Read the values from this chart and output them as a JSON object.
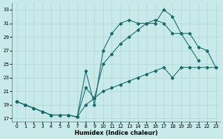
{
  "xlabel": "Humidex (Indice chaleur)",
  "bg_color": "#c8eaea",
  "grid_color": "#b0d4d4",
  "line_color": "#1a6b6b",
  "xlim": [
    -0.5,
    23.5
  ],
  "ylim": [
    16.5,
    34.0
  ],
  "xticks": [
    0,
    1,
    2,
    3,
    4,
    5,
    6,
    7,
    8,
    9,
    10,
    11,
    12,
    13,
    14,
    15,
    16,
    17,
    18,
    19,
    20,
    21,
    22,
    23
  ],
  "yticks": [
    17,
    19,
    21,
    23,
    25,
    27,
    29,
    31,
    33
  ],
  "line1_x": [
    0,
    1,
    2,
    3,
    4,
    5,
    6,
    7,
    8,
    9,
    10,
    11,
    12,
    13,
    14,
    15,
    16,
    17,
    18,
    19,
    20,
    21,
    22,
    23
  ],
  "line1_y": [
    19.5,
    19.0,
    18.5,
    18.0,
    17.5,
    17.5,
    17.5,
    17.2,
    19.0,
    20.0,
    21.0,
    21.5,
    22.0,
    22.5,
    23.0,
    23.5,
    24.0,
    24.5,
    23.0,
    24.5,
    24.5,
    24.5,
    24.5,
    24.5
  ],
  "line2_x": [
    0,
    1,
    2,
    3,
    4,
    5,
    6,
    7,
    8,
    9,
    10,
    11,
    12,
    13,
    14,
    15,
    16,
    17,
    18,
    19,
    20,
    21
  ],
  "line2_y": [
    19.5,
    19.0,
    18.5,
    18.0,
    17.5,
    17.5,
    17.5,
    17.2,
    24.0,
    19.0,
    27.0,
    29.5,
    31.0,
    31.5,
    31.0,
    31.0,
    31.0,
    33.0,
    32.0,
    29.5,
    27.5,
    25.5
  ],
  "line3_x": [
    0,
    1,
    2,
    3,
    4,
    5,
    6,
    7,
    8,
    9,
    10,
    11,
    12,
    13,
    14,
    15,
    16,
    17,
    18,
    19,
    20,
    21,
    22,
    23
  ],
  "line3_y": [
    19.5,
    19.0,
    18.5,
    18.0,
    17.5,
    17.5,
    17.5,
    17.2,
    21.5,
    20.0,
    25.0,
    26.5,
    28.0,
    29.0,
    30.0,
    31.0,
    31.5,
    31.0,
    29.5,
    29.5,
    29.5,
    27.5,
    27.0,
    24.5
  ]
}
